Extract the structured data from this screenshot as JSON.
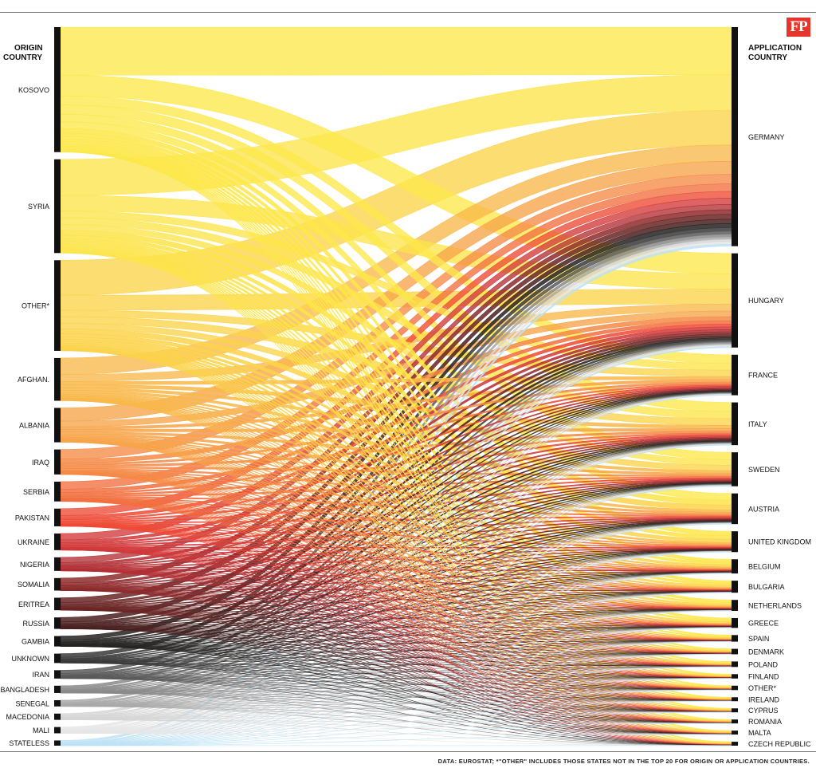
{
  "header": {
    "origin_heading_line1": "ORIGIN",
    "origin_heading_line2": "COUNTRY",
    "application_heading_line1": "APPLICATION",
    "application_heading_line2": "COUNTRY",
    "logo_text": "FP"
  },
  "footnote": "DATA: EUROSTAT; *\"OTHER\" INCLUDES THOSE STATES NOT IN THE TOP 20 FOR ORIGIN OR APPLICATION COUNTRIES.",
  "colors": {
    "origin_palette": [
      "#fde84a",
      "#fce44a",
      "#fbd34a",
      "#f8b84a",
      "#f7a449",
      "#f58a46",
      "#f2703f",
      "#ee4a36",
      "#d2393a",
      "#b22f34",
      "#8e2a2c",
      "#6a2625",
      "#4a2120",
      "#262322",
      "#3a3a3a",
      "#5a5a5a",
      "#8a8a8a",
      "#a9a9a9",
      "#d6d6d6",
      "#e6e6e6",
      "#bde2f5"
    ],
    "node_bar": "#111111",
    "text": "#111111"
  },
  "chart_data": {
    "type": "sankey",
    "origins": [
      {
        "name": "KOSOVO",
        "size": 12.0
      },
      {
        "name": "SYRIA",
        "size": 9.0
      },
      {
        "name": "OTHER*",
        "size": 8.7
      },
      {
        "name": "AFGHAN.",
        "size": 4.1
      },
      {
        "name": "ALBANIA",
        "size": 3.3
      },
      {
        "name": "IRAQ",
        "size": 2.4
      },
      {
        "name": "SERBIA",
        "size": 1.9
      },
      {
        "name": "PAKISTAN",
        "size": 1.7
      },
      {
        "name": "UKRAINE",
        "size": 1.6
      },
      {
        "name": "NIGERIA",
        "size": 1.3
      },
      {
        "name": "SOMALIA",
        "size": 1.2
      },
      {
        "name": "ERITREA",
        "size": 1.2
      },
      {
        "name": "RUSSIA",
        "size": 1.1
      },
      {
        "name": "GAMBIA",
        "size": 1.0
      },
      {
        "name": "UNKNOWN",
        "size": 0.9
      },
      {
        "name": "IRAN",
        "size": 0.8
      },
      {
        "name": "BANGLADESH",
        "size": 0.7
      },
      {
        "name": "SENEGAL",
        "size": 0.6
      },
      {
        "name": "MACEDONIA",
        "size": 0.6
      },
      {
        "name": "MALI",
        "size": 0.6
      },
      {
        "name": "STATELESS",
        "size": 0.5
      }
    ],
    "destinations": [
      {
        "name": "GERMANY",
        "size": 20.0
      },
      {
        "name": "HUNGARY",
        "size": 8.6
      },
      {
        "name": "FRANCE",
        "size": 3.7
      },
      {
        "name": "ITALY",
        "size": 3.9
      },
      {
        "name": "SWEDEN",
        "size": 3.1
      },
      {
        "name": "AUSTRIA",
        "size": 2.8
      },
      {
        "name": "UNITED KINGDOM",
        "size": 1.9
      },
      {
        "name": "BELGIUM",
        "size": 1.3
      },
      {
        "name": "BULGARIA",
        "size": 1.1
      },
      {
        "name": "NETHERLANDS",
        "size": 1.0
      },
      {
        "name": "GREECE",
        "size": 0.9
      },
      {
        "name": "SPAIN",
        "size": 0.6
      },
      {
        "name": "DENMARK",
        "size": 0.5
      },
      {
        "name": "POLAND",
        "size": 0.5
      },
      {
        "name": "FINLAND",
        "size": 0.4
      },
      {
        "name": "OTHER*",
        "size": 0.4
      },
      {
        "name": "IRELAND",
        "size": 0.3
      },
      {
        "name": "CYPRUS",
        "size": 0.3
      },
      {
        "name": "ROMANIA",
        "size": 0.2
      },
      {
        "name": "MALTA",
        "size": 0.2
      },
      {
        "name": "CZECH REPUBLIC",
        "size": 0.2
      }
    ]
  }
}
